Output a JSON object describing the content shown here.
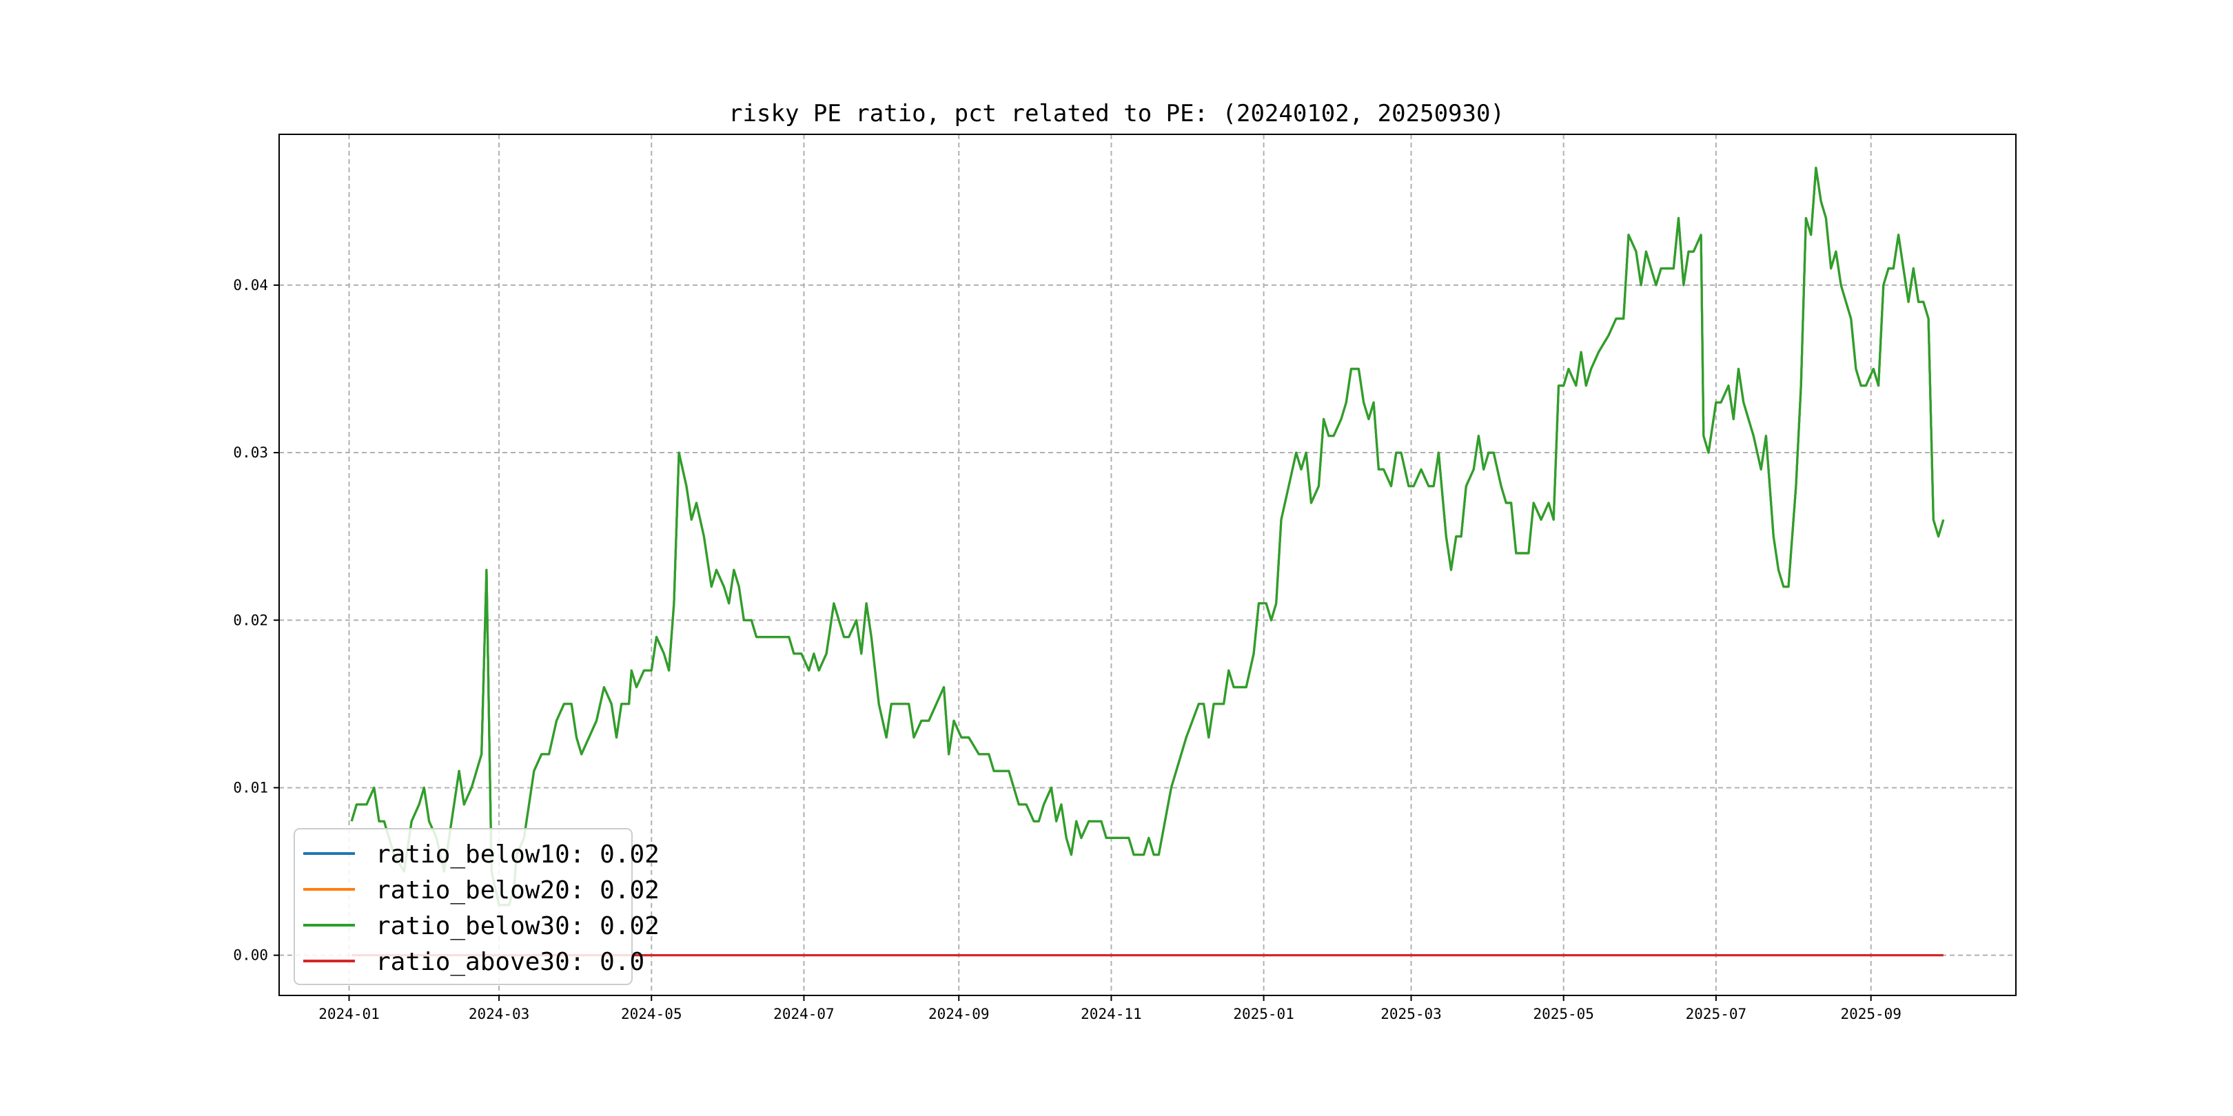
{
  "chart_data": {
    "type": "line",
    "title": "risky PE ratio, pct related to PE: (20240102, 20250930)",
    "xlabel": "",
    "ylabel": "",
    "xlim": [
      "2023-12-04",
      "2025-10-29"
    ],
    "ylim": [
      -0.0024,
      0.049
    ],
    "grid": true,
    "legend_placement": "lower-left",
    "x_ticks": [
      "2024-01",
      "2024-03",
      "2024-05",
      "2024-07",
      "2024-09",
      "2024-11",
      "2025-01",
      "2025-03",
      "2025-05",
      "2025-07",
      "2025-09"
    ],
    "y_ticks": [
      "0.00",
      "0.01",
      "0.02",
      "0.03",
      "0.04"
    ],
    "legend": [
      "ratio_below10: 0.02",
      "ratio_below20: 0.02",
      "ratio_below30: 0.02",
      "ratio_above30: 0.0"
    ],
    "series": [
      {
        "name": "ratio_below10",
        "color": "#1f77b4",
        "points": [
          [
            "2024-01-02",
            0.008
          ],
          [
            "2024-01-04",
            0.009
          ],
          [
            "2024-01-08",
            0.009
          ],
          [
            "2024-01-11",
            0.01
          ],
          [
            "2024-01-13",
            0.008
          ],
          [
            "2024-01-15",
            0.008
          ],
          [
            "2024-01-17",
            0.007
          ],
          [
            "2024-01-19",
            0.006
          ],
          [
            "2024-01-23",
            0.005
          ],
          [
            "2024-01-26",
            0.008
          ],
          [
            "2024-01-29",
            0.009
          ],
          [
            "2024-01-31",
            0.01
          ],
          [
            "2024-02-02",
            0.008
          ],
          [
            "2024-02-05",
            0.007
          ],
          [
            "2024-02-08",
            0.005
          ],
          [
            "2024-02-14",
            0.011
          ],
          [
            "2024-02-16",
            0.009
          ],
          [
            "2024-02-19",
            0.01
          ],
          [
            "2024-02-23",
            0.012
          ],
          [
            "2024-02-25",
            0.023
          ],
          [
            "2024-02-27",
            0.005
          ],
          [
            "2024-03-01",
            0.003
          ],
          [
            "2024-03-05",
            0.003
          ],
          [
            "2024-03-07",
            0.004
          ],
          [
            "2024-03-08",
            0.006
          ],
          [
            "2024-03-11",
            0.007
          ],
          [
            "2024-03-13",
            0.009
          ],
          [
            "2024-03-15",
            0.011
          ],
          [
            "2024-03-18",
            0.012
          ],
          [
            "2024-03-21",
            0.012
          ],
          [
            "2024-03-24",
            0.014
          ],
          [
            "2024-03-27",
            0.015
          ],
          [
            "2024-03-30",
            0.015
          ],
          [
            "2024-04-01",
            0.013
          ],
          [
            "2024-04-03",
            0.012
          ],
          [
            "2024-04-06",
            0.013
          ],
          [
            "2024-04-09",
            0.014
          ],
          [
            "2024-04-12",
            0.016
          ],
          [
            "2024-04-15",
            0.015
          ],
          [
            "2024-04-17",
            0.013
          ],
          [
            "2024-04-19",
            0.015
          ],
          [
            "2024-04-22",
            0.015
          ],
          [
            "2024-04-23",
            0.017
          ],
          [
            "2024-04-25",
            0.016
          ],
          [
            "2024-04-28",
            0.017
          ],
          [
            "2024-05-01",
            0.017
          ],
          [
            "2024-05-03",
            0.019
          ],
          [
            "2024-05-06",
            0.018
          ],
          [
            "2024-05-08",
            0.017
          ],
          [
            "2024-05-10",
            0.021
          ],
          [
            "2024-05-12",
            0.03
          ],
          [
            "2024-05-15",
            0.028
          ],
          [
            "2024-05-17",
            0.026
          ],
          [
            "2024-05-19",
            0.027
          ],
          [
            "2024-05-22",
            0.025
          ],
          [
            "2024-05-25",
            0.022
          ],
          [
            "2024-05-27",
            0.023
          ],
          [
            "2024-05-30",
            0.022
          ],
          [
            "2024-06-01",
            0.021
          ],
          [
            "2024-06-03",
            0.023
          ],
          [
            "2024-06-05",
            0.022
          ],
          [
            "2024-06-07",
            0.02
          ],
          [
            "2024-06-10",
            0.02
          ],
          [
            "2024-06-12",
            0.019
          ],
          [
            "2024-06-15",
            0.019
          ],
          [
            "2024-06-20",
            0.019
          ],
          [
            "2024-06-25",
            0.019
          ],
          [
            "2024-06-27",
            0.018
          ],
          [
            "2024-06-30",
            0.018
          ],
          [
            "2024-07-03",
            0.017
          ],
          [
            "2024-07-05",
            0.018
          ],
          [
            "2024-07-07",
            0.017
          ],
          [
            "2024-07-10",
            0.018
          ],
          [
            "2024-07-13",
            0.021
          ],
          [
            "2024-07-15",
            0.02
          ],
          [
            "2024-07-17",
            0.019
          ],
          [
            "2024-07-19",
            0.019
          ],
          [
            "2024-07-22",
            0.02
          ],
          [
            "2024-07-24",
            0.018
          ],
          [
            "2024-07-26",
            0.021
          ],
          [
            "2024-07-28",
            0.019
          ],
          [
            "2024-07-31",
            0.015
          ],
          [
            "2024-08-03",
            0.013
          ],
          [
            "2024-08-05",
            0.015
          ],
          [
            "2024-08-07",
            0.015
          ],
          [
            "2024-08-12",
            0.015
          ],
          [
            "2024-08-14",
            0.013
          ],
          [
            "2024-08-17",
            0.014
          ],
          [
            "2024-08-20",
            0.014
          ],
          [
            "2024-08-23",
            0.015
          ],
          [
            "2024-08-26",
            0.016
          ],
          [
            "2024-08-28",
            0.012
          ],
          [
            "2024-08-30",
            0.014
          ],
          [
            "2024-09-02",
            0.013
          ],
          [
            "2024-09-05",
            0.013
          ],
          [
            "2024-09-09",
            0.012
          ],
          [
            "2024-09-13",
            0.012
          ],
          [
            "2024-09-15",
            0.011
          ],
          [
            "2024-09-18",
            0.011
          ],
          [
            "2024-09-21",
            0.011
          ],
          [
            "2024-09-23",
            0.01
          ],
          [
            "2024-09-25",
            0.009
          ],
          [
            "2024-09-28",
            0.009
          ],
          [
            "2024-10-01",
            0.008
          ],
          [
            "2024-10-03",
            0.008
          ],
          [
            "2024-10-05",
            0.009
          ],
          [
            "2024-10-08",
            0.01
          ],
          [
            "2024-10-10",
            0.008
          ],
          [
            "2024-10-12",
            0.009
          ],
          [
            "2024-10-14",
            0.007
          ],
          [
            "2024-10-16",
            0.006
          ],
          [
            "2024-10-18",
            0.008
          ],
          [
            "2024-10-20",
            0.007
          ],
          [
            "2024-10-23",
            0.008
          ],
          [
            "2024-10-25",
            0.008
          ],
          [
            "2024-10-28",
            0.008
          ],
          [
            "2024-10-30",
            0.007
          ],
          [
            "2024-11-05",
            0.007
          ],
          [
            "2024-11-08",
            0.007
          ],
          [
            "2024-11-10",
            0.006
          ],
          [
            "2024-11-14",
            0.006
          ],
          [
            "2024-11-16",
            0.007
          ],
          [
            "2024-11-18",
            0.006
          ],
          [
            "2024-11-20",
            0.006
          ],
          [
            "2024-11-25",
            0.01
          ],
          [
            "2024-12-01",
            0.013
          ],
          [
            "2024-12-06",
            0.015
          ],
          [
            "2024-12-08",
            0.015
          ],
          [
            "2024-12-10",
            0.013
          ],
          [
            "2024-12-12",
            0.015
          ],
          [
            "2024-12-14",
            0.015
          ],
          [
            "2024-12-16",
            0.015
          ],
          [
            "2024-12-18",
            0.017
          ],
          [
            "2024-12-20",
            0.016
          ],
          [
            "2024-12-25",
            0.016
          ],
          [
            "2024-12-28",
            0.018
          ],
          [
            "2024-12-30",
            0.021
          ],
          [
            "2025-01-02",
            0.021
          ],
          [
            "2025-01-04",
            0.02
          ],
          [
            "2025-01-06",
            0.021
          ],
          [
            "2025-01-08",
            0.026
          ],
          [
            "2025-01-11",
            0.028
          ],
          [
            "2025-01-14",
            0.03
          ],
          [
            "2025-01-16",
            0.029
          ],
          [
            "2025-01-18",
            0.03
          ],
          [
            "2025-01-20",
            0.027
          ],
          [
            "2025-01-23",
            0.028
          ],
          [
            "2025-01-25",
            0.032
          ],
          [
            "2025-01-27",
            0.031
          ],
          [
            "2025-01-29",
            0.031
          ],
          [
            "2025-02-01",
            0.032
          ],
          [
            "2025-02-03",
            0.033
          ],
          [
            "2025-02-05",
            0.035
          ],
          [
            "2025-02-08",
            0.035
          ],
          [
            "2025-02-10",
            0.033
          ],
          [
            "2025-02-12",
            0.032
          ],
          [
            "2025-02-14",
            0.033
          ],
          [
            "2025-02-16",
            0.029
          ],
          [
            "2025-02-18",
            0.029
          ],
          [
            "2025-02-21",
            0.028
          ],
          [
            "2025-02-23",
            0.03
          ],
          [
            "2025-02-25",
            0.03
          ],
          [
            "2025-02-28",
            0.028
          ],
          [
            "2025-03-02",
            0.028
          ],
          [
            "2025-03-05",
            0.029
          ],
          [
            "2025-03-08",
            0.028
          ],
          [
            "2025-03-10",
            0.028
          ],
          [
            "2025-03-12",
            0.03
          ],
          [
            "2025-03-15",
            0.025
          ],
          [
            "2025-03-17",
            0.023
          ],
          [
            "2025-03-19",
            0.025
          ],
          [
            "2025-03-21",
            0.025
          ],
          [
            "2025-03-23",
            0.028
          ],
          [
            "2025-03-26",
            0.029
          ],
          [
            "2025-03-28",
            0.031
          ],
          [
            "2025-03-30",
            0.029
          ],
          [
            "2025-04-01",
            0.03
          ],
          [
            "2025-04-03",
            0.03
          ],
          [
            "2025-04-06",
            0.028
          ],
          [
            "2025-04-08",
            0.027
          ],
          [
            "2025-04-10",
            0.027
          ],
          [
            "2025-04-12",
            0.024
          ],
          [
            "2025-04-17",
            0.024
          ],
          [
            "2025-04-19",
            0.027
          ],
          [
            "2025-04-22",
            0.026
          ],
          [
            "2025-04-25",
            0.027
          ],
          [
            "2025-04-27",
            0.026
          ],
          [
            "2025-04-29",
            0.034
          ],
          [
            "2025-05-01",
            0.034
          ],
          [
            "2025-05-03",
            0.035
          ],
          [
            "2025-05-06",
            0.034
          ],
          [
            "2025-05-08",
            0.036
          ],
          [
            "2025-05-10",
            0.034
          ],
          [
            "2025-05-12",
            0.035
          ],
          [
            "2025-05-15",
            0.036
          ],
          [
            "2025-05-19",
            0.037
          ],
          [
            "2025-05-22",
            0.038
          ],
          [
            "2025-05-25",
            0.038
          ],
          [
            "2025-05-27",
            0.043
          ],
          [
            "2025-05-30",
            0.042
          ],
          [
            "2025-06-01",
            0.04
          ],
          [
            "2025-06-03",
            0.042
          ],
          [
            "2025-06-05",
            0.041
          ],
          [
            "2025-06-07",
            0.04
          ],
          [
            "2025-06-09",
            0.041
          ],
          [
            "2025-06-12",
            0.041
          ],
          [
            "2025-06-14",
            0.041
          ],
          [
            "2025-06-16",
            0.044
          ],
          [
            "2025-06-18",
            0.04
          ],
          [
            "2025-06-20",
            0.042
          ],
          [
            "2025-06-22",
            0.042
          ],
          [
            "2025-06-25",
            0.043
          ],
          [
            "2025-06-26",
            0.031
          ],
          [
            "2025-06-28",
            0.03
          ],
          [
            "2025-07-01",
            0.033
          ],
          [
            "2025-07-03",
            0.033
          ],
          [
            "2025-07-06",
            0.034
          ],
          [
            "2025-07-08",
            0.032
          ],
          [
            "2025-07-10",
            0.035
          ],
          [
            "2025-07-12",
            0.033
          ],
          [
            "2025-07-14",
            0.032
          ],
          [
            "2025-07-16",
            0.031
          ],
          [
            "2025-07-19",
            0.029
          ],
          [
            "2025-07-21",
            0.031
          ],
          [
            "2025-07-24",
            0.025
          ],
          [
            "2025-07-26",
            0.023
          ],
          [
            "2025-07-28",
            0.022
          ],
          [
            "2025-07-30",
            0.022
          ],
          [
            "2025-08-02",
            0.028
          ],
          [
            "2025-08-04",
            0.034
          ],
          [
            "2025-08-06",
            0.044
          ],
          [
            "2025-08-08",
            0.043
          ],
          [
            "2025-08-10",
            0.047
          ],
          [
            "2025-08-12",
            0.045
          ],
          [
            "2025-08-14",
            0.044
          ],
          [
            "2025-08-16",
            0.041
          ],
          [
            "2025-08-18",
            0.042
          ],
          [
            "2025-08-20",
            0.04
          ],
          [
            "2025-08-22",
            0.039
          ],
          [
            "2025-08-24",
            0.038
          ],
          [
            "2025-08-26",
            0.035
          ],
          [
            "2025-08-28",
            0.034
          ],
          [
            "2025-08-30",
            0.034
          ],
          [
            "2025-09-02",
            0.035
          ],
          [
            "2025-09-04",
            0.034
          ],
          [
            "2025-09-06",
            0.04
          ],
          [
            "2025-09-08",
            0.041
          ],
          [
            "2025-09-10",
            0.041
          ],
          [
            "2025-09-12",
            0.043
          ],
          [
            "2025-09-14",
            0.041
          ],
          [
            "2025-09-16",
            0.039
          ],
          [
            "2025-09-18",
            0.041
          ],
          [
            "2025-09-20",
            0.039
          ],
          [
            "2025-09-22",
            0.039
          ],
          [
            "2025-09-24",
            0.038
          ],
          [
            "2025-09-26",
            0.026
          ],
          [
            "2025-09-28",
            0.025
          ],
          [
            "2025-09-30",
            0.026
          ]
        ]
      },
      {
        "name": "ratio_below20",
        "color": "#ff7f0e",
        "points": []
      },
      {
        "name": "ratio_below30",
        "color": "#2ca02c",
        "points": []
      },
      {
        "name": "ratio_above30",
        "color": "#d62728",
        "points": [
          [
            "2024-01-02",
            0.0
          ],
          [
            "2025-09-30",
            0.0
          ]
        ]
      }
    ]
  }
}
